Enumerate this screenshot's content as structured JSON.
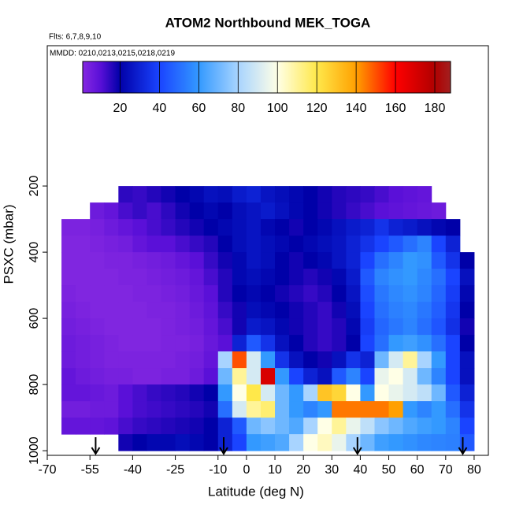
{
  "chart_data": {
    "type": "heatmap",
    "title": "ATOM2 Northbound MEK_TOGA",
    "annotations": [
      "Flts: 6,7,8,9,10",
      "MMDD: 0210,0213,0215,0218,0219"
    ],
    "x_label": "Latitude (deg N)",
    "y_label": "PSXC (mbar)",
    "xlim": [
      -70,
      85
    ],
    "ylim": [
      1014,
      -224
    ],
    "xticks": [
      -70,
      -55,
      -40,
      -25,
      -10,
      0,
      10,
      20,
      30,
      40,
      50,
      60,
      70,
      80
    ],
    "yticks": [
      200,
      400,
      600,
      800,
      1000
    ],
    "x_edges": [
      -65,
      -60,
      -55,
      -50,
      -45,
      -40,
      -35,
      -30,
      -25,
      -20,
      -15,
      -10,
      -5,
      0,
      5,
      10,
      15,
      20,
      25,
      30,
      35,
      40,
      45,
      50,
      55,
      60,
      65,
      70,
      75,
      80
    ],
    "y_edges": [
      200,
      250,
      300,
      350,
      400,
      450,
      500,
      550,
      600,
      650,
      700,
      750,
      800,
      850,
      900,
      950,
      1000
    ],
    "values": [
      [
        null,
        null,
        null,
        null,
        15,
        14,
        16,
        18,
        20,
        22,
        25,
        24,
        28,
        30,
        26,
        24,
        22,
        20,
        18,
        16,
        15,
        14,
        12,
        10,
        9,
        8,
        null,
        null,
        null
      ],
      [
        null,
        null,
        6,
        8,
        12,
        14,
        12,
        15,
        18,
        20,
        22,
        20,
        24,
        26,
        28,
        25,
        22,
        20,
        18,
        16,
        14,
        12,
        10,
        9,
        8,
        7,
        6,
        null,
        null
      ],
      [
        3,
        3,
        4,
        6,
        8,
        10,
        12,
        14,
        16,
        18,
        20,
        22,
        24,
        26,
        22,
        20,
        18,
        20,
        22,
        25,
        28,
        30,
        35,
        30,
        28,
        25,
        22,
        20,
        null
      ],
      [
        2,
        2,
        3,
        4,
        5,
        8,
        10,
        10,
        12,
        14,
        16,
        20,
        24,
        26,
        24,
        22,
        20,
        22,
        24,
        26,
        30,
        35,
        40,
        45,
        50,
        55,
        40,
        30,
        null
      ],
      [
        2,
        2,
        2,
        3,
        3,
        4,
        5,
        6,
        8,
        10,
        14,
        18,
        22,
        26,
        24,
        20,
        18,
        20,
        22,
        26,
        30,
        40,
        50,
        55,
        60,
        58,
        45,
        35,
        20
      ],
      [
        2,
        2,
        2,
        2,
        3,
        3,
        4,
        5,
        6,
        8,
        12,
        16,
        22,
        24,
        22,
        20,
        18,
        16,
        18,
        22,
        28,
        45,
        55,
        58,
        60,
        56,
        50,
        40,
        25
      ],
      [
        3,
        2,
        2,
        2,
        2,
        3,
        3,
        4,
        5,
        7,
        10,
        16,
        20,
        22,
        20,
        18,
        16,
        14,
        16,
        20,
        26,
        42,
        52,
        56,
        58,
        55,
        48,
        38,
        22
      ],
      [
        4,
        3,
        2,
        2,
        2,
        2,
        3,
        3,
        4,
        6,
        9,
        14,
        18,
        24,
        22,
        20,
        18,
        16,
        14,
        18,
        24,
        40,
        50,
        54,
        56,
        52,
        46,
        36,
        20
      ],
      [
        5,
        4,
        3,
        2,
        2,
        2,
        2,
        3,
        4,
        5,
        8,
        12,
        18,
        28,
        26,
        22,
        18,
        16,
        14,
        16,
        22,
        38,
        48,
        52,
        55,
        50,
        44,
        34,
        18
      ],
      [
        6,
        5,
        4,
        3,
        2,
        2,
        2,
        3,
        3,
        4,
        7,
        10,
        30,
        45,
        35,
        25,
        20,
        16,
        14,
        16,
        20,
        40,
        50,
        60,
        62,
        58,
        50,
        40,
        20
      ],
      [
        6,
        5,
        4,
        3,
        3,
        3,
        3,
        3,
        4,
        5,
        8,
        80,
        150,
        90,
        60,
        35,
        25,
        20,
        18,
        25,
        35,
        30,
        70,
        90,
        110,
        80,
        60,
        40,
        25
      ],
      [
        8,
        6,
        5,
        4,
        4,
        3,
        3,
        4,
        4,
        6,
        10,
        70,
        110,
        90,
        170,
        60,
        40,
        30,
        25,
        45,
        55,
        40,
        95,
        100,
        90,
        70,
        55,
        40,
        25
      ],
      [
        8,
        8,
        7,
        6,
        10,
        12,
        14,
        15,
        16,
        18,
        20,
        60,
        100,
        120,
        90,
        70,
        60,
        80,
        130,
        125,
        100,
        60,
        100,
        95,
        90,
        85,
        70,
        45,
        30
      ],
      [
        5,
        5,
        6,
        6,
        10,
        12,
        13,
        14,
        15,
        16,
        18,
        50,
        90,
        110,
        115,
        70,
        60,
        55,
        60,
        145,
        145,
        145,
        145,
        140,
        60,
        55,
        60,
        50,
        35
      ],
      [
        8,
        8,
        8,
        9,
        12,
        14,
        15,
        16,
        17,
        18,
        20,
        30,
        45,
        70,
        75,
        70,
        65,
        80,
        100,
        110,
        95,
        85,
        75,
        70,
        65,
        62,
        60,
        55,
        40
      ],
      [
        null,
        null,
        null,
        null,
        18,
        20,
        22,
        22,
        24,
        22,
        20,
        30,
        40,
        60,
        62,
        65,
        80,
        100,
        105,
        95,
        80,
        70,
        62,
        60,
        58,
        56,
        55,
        54,
        45
      ]
    ],
    "colorbar": {
      "zlim": [
        1,
        188
      ],
      "ticks": [
        20,
        40,
        60,
        80,
        100,
        120,
        140,
        160,
        180
      ],
      "colorscale": [
        [
          0,
          "#8a2be2"
        ],
        [
          10,
          "#5a10d8"
        ],
        [
          20,
          "#0000a8"
        ],
        [
          40,
          "#1a44ff"
        ],
        [
          60,
          "#3399ff"
        ],
        [
          80,
          "#a8d4ff"
        ],
        [
          100,
          "#ffffe6"
        ],
        [
          120,
          "#ffe84a"
        ],
        [
          140,
          "#ffa000"
        ],
        [
          160,
          "#ff0000"
        ],
        [
          180,
          "#b00000"
        ],
        [
          190,
          "#a02828"
        ]
      ]
    },
    "arrows": [
      -53,
      -8,
      39,
      76
    ]
  }
}
